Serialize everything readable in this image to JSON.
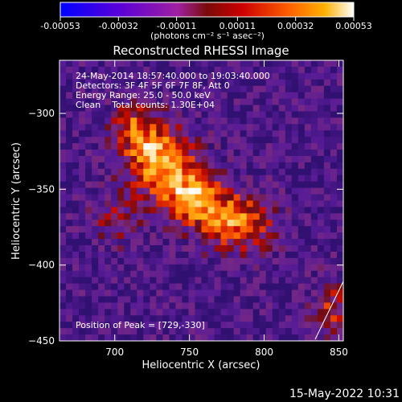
{
  "colorbar": {
    "tick_labels": [
      "-0.00053",
      "-0.00032",
      "-0.00011",
      "0.00011",
      "0.00032",
      "0.00053"
    ],
    "tick_values": [
      -0.00053,
      -0.00032,
      -0.00011,
      0.00011,
      0.00032,
      0.00053
    ],
    "units": "(photons cm⁻² s⁻¹ asec⁻²)",
    "range": [
      -0.00053,
      0.00053
    ],
    "colors": [
      "#0000ff",
      "#5a00d8",
      "#a020a0",
      "#7a0a0a",
      "#cc0000",
      "#ff6000",
      "#ffb000",
      "#ffffff"
    ]
  },
  "info": {
    "line1": "24-May-2014 18:57:40.000 to 19:03:40.000",
    "line2": "Detectors: 3F 4F 5F 6F 7F 8F, Att 0",
    "line3": "Energy Range: 25.0 - 50.0 keV",
    "line4": "Clean    Total counts: 1.30E+04",
    "peak": "Position of Peak = [729,-330]"
  },
  "footer": {
    "timestamp": "15-May-2022 10:31"
  },
  "chart_data": {
    "type": "heatmap",
    "title": "Reconstructed RHESSI Image",
    "xlabel": "Heliocentric X (arcsec)",
    "ylabel": "Heliocentric Y (arcsec)",
    "xlim": [
      663,
      853
    ],
    "ylim": [
      -450,
      -265
    ],
    "x_ticks": [
      700,
      750,
      800,
      850
    ],
    "y_ticks": [
      -300,
      -350,
      -400,
      -450
    ],
    "x_tick_labels": [
      "700",
      "750",
      "800",
      "850"
    ],
    "y_tick_labels": [
      "−300",
      "−350",
      "−400",
      "−450"
    ],
    "peak_position": [
      729,
      -330
    ],
    "emission_sources": [
      {
        "x": 729,
        "y": -330,
        "sigma_x": 16,
        "sigma_y": 16,
        "amplitude": 1.0
      },
      {
        "x": 752,
        "y": -355,
        "sigma_x": 15,
        "sigma_y": 13,
        "amplitude": 0.85
      },
      {
        "x": 782,
        "y": -372,
        "sigma_x": 17,
        "sigma_y": 13,
        "amplitude": 0.85
      },
      {
        "x": 712,
        "y": -308,
        "sigma_x": 11,
        "sigma_y": 11,
        "amplitude": 0.55
      },
      {
        "x": 700,
        "y": -370,
        "sigma_x": 12,
        "sigma_y": 12,
        "amplitude": 0.4
      },
      {
        "x": 845,
        "y": -430,
        "sigma_x": 9,
        "sigma_y": 14,
        "amplitude": 0.55
      }
    ],
    "grid": false,
    "colormap": "rhessi"
  }
}
